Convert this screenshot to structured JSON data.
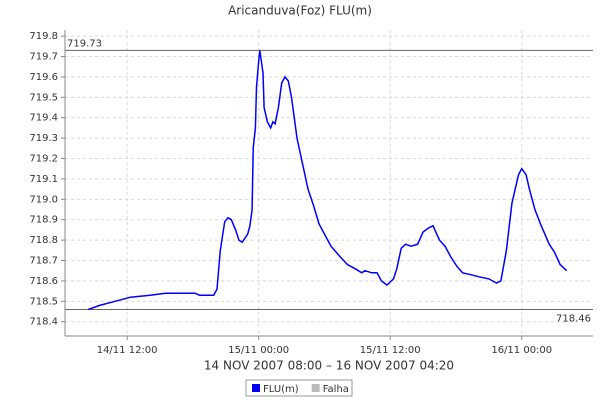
{
  "chart_data": {
    "type": "line",
    "title": "Aricanduva(Foz) FLU(m)",
    "x_label": "14 NOV 2007 08:00 – 16 NOV 2007 04:20",
    "xlim": [
      "14/11 06:20",
      "16/11 06:30"
    ],
    "xticks": [
      "14/11 12:00",
      "15/11 00:00",
      "15/11 12:00",
      "16/11 00:00"
    ],
    "ylim": [
      718.33,
      719.83
    ],
    "yticks": [
      718.4,
      718.5,
      718.6,
      718.7,
      718.8,
      718.9,
      {
        "value": 719,
        "label": "719.0"
      },
      719.1,
      719.2,
      719.3,
      719.4,
      719.5,
      719.6,
      719.7,
      719.8
    ],
    "grid": true,
    "reference_lines": [
      719.73,
      718.46
    ],
    "series": [
      {
        "name": "FLU(m)",
        "color": "#0000ff",
        "x": [
          "14/11 08:27",
          "14/11 09:30",
          "14/11 10:54",
          "14/11 12:18",
          "14/11 14:06",
          "14/11 15:30",
          "14/11 18:12",
          "14/11 18:36",
          "14/11 19:54",
          "14/11 20:12",
          "14/11 20:30",
          "14/11 20:54",
          "14/11 21:12",
          "14/11 21:30",
          "14/11 21:54",
          "14/11 22:12",
          "14/11 22:30",
          "14/11 23:00",
          "14/11 23:12",
          "14/11 23:24",
          "14/11 23:30",
          "14/11 23:42",
          "14/11 23:48",
          "15/11 00:00",
          "15/11 00:06",
          "15/11 00:24",
          "15/11 00:30",
          "15/11 00:48",
          "15/11 01:06",
          "15/11 01:18",
          "15/11 01:30",
          "15/11 01:48",
          "15/11 02:06",
          "15/11 02:24",
          "15/11 02:42",
          "15/11 03:00",
          "15/11 03:30",
          "15/11 04:06",
          "15/11 04:30",
          "15/11 05:00",
          "15/11 05:30",
          "15/11 06:06",
          "15/11 06:36",
          "15/11 07:24",
          "15/11 08:06",
          "15/11 08:48",
          "15/11 09:24",
          "15/11 09:42",
          "15/11 10:18",
          "15/11 10:48",
          "15/11 11:12",
          "15/11 11:42",
          "15/11 12:18",
          "15/11 12:36",
          "15/11 13:00",
          "15/11 13:24",
          "15/11 13:54",
          "15/11 14:30",
          "15/11 15:00",
          "15/11 15:30",
          "15/11 15:54",
          "15/11 16:30",
          "15/11 17:00",
          "15/11 17:30",
          "15/11 18:06",
          "15/11 18:36",
          "15/11 19:24",
          "15/11 20:06",
          "15/11 21:00",
          "15/11 21:42",
          "15/11 22:06",
          "15/11 22:36",
          "15/11 23:06",
          "15/11 23:24",
          "15/11 23:42",
          "16/11 00:00",
          "16/11 00:24",
          "16/11 00:42",
          "16/11 01:12",
          "16/11 01:42",
          "16/11 02:30",
          "16/11 03:00",
          "16/11 03:30",
          "16/11 04:06"
        ],
        "values": [
          718.46,
          718.48,
          718.5,
          718.52,
          718.53,
          718.54,
          718.54,
          718.53,
          718.53,
          718.56,
          718.75,
          718.89,
          718.91,
          718.9,
          718.85,
          718.8,
          718.79,
          718.83,
          718.87,
          718.95,
          719.25,
          719.35,
          719.55,
          719.68,
          719.73,
          719.62,
          719.45,
          719.38,
          719.35,
          719.38,
          719.37,
          719.45,
          719.57,
          719.6,
          719.58,
          719.5,
          719.3,
          719.15,
          719.05,
          718.97,
          718.88,
          718.82,
          718.77,
          718.72,
          718.68,
          718.66,
          718.64,
          718.65,
          718.64,
          718.64,
          718.6,
          718.58,
          718.61,
          718.66,
          718.76,
          718.78,
          718.77,
          718.78,
          718.84,
          718.86,
          718.87,
          718.8,
          718.77,
          718.72,
          718.67,
          718.64,
          718.63,
          718.62,
          718.61,
          718.59,
          718.6,
          718.75,
          718.98,
          719.05,
          719.12,
          719.15,
          719.12,
          719.05,
          718.95,
          718.88,
          718.78,
          718.74,
          718.68,
          718.65
        ]
      },
      {
        "name": "Falha",
        "color": "#bbbbbb",
        "x": [],
        "values": []
      }
    ]
  }
}
